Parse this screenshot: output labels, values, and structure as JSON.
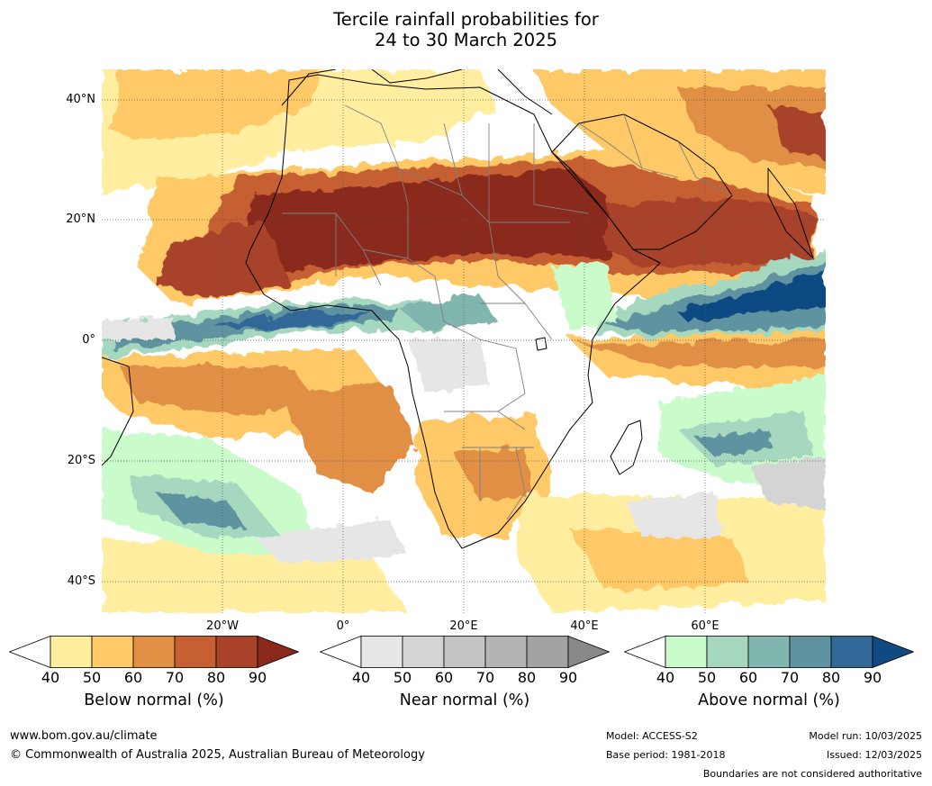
{
  "title_line1": "Tercile rainfall probabilities for",
  "title_line2": "24 to 30 March 2025",
  "map": {
    "lat_labels": [
      "40°N",
      "20°N",
      "0°",
      "20°S",
      "40°S"
    ],
    "lon_labels": [
      "20°W",
      "0°",
      "20°E",
      "40°E",
      "60°E"
    ],
    "grid": "dotted"
  },
  "colorbars": [
    {
      "title": "Below normal (%)",
      "ticks": [
        "40",
        "50",
        "60",
        "70",
        "80",
        "90"
      ],
      "colors": [
        "#ffffff",
        "#ffeea0",
        "#fec966",
        "#e08f45",
        "#c66033",
        "#a8432a",
        "#8a2a1c"
      ]
    },
    {
      "title": "Near normal (%)",
      "ticks": [
        "40",
        "50",
        "60",
        "70",
        "80",
        "90"
      ],
      "colors": [
        "#ffffff",
        "#e6e6e6",
        "#d4d4d4",
        "#c4c4c4",
        "#b4b4b4",
        "#a2a2a2",
        "#888888"
      ]
    },
    {
      "title": "Above normal (%)",
      "ticks": [
        "40",
        "50",
        "60",
        "70",
        "80",
        "90"
      ],
      "colors": [
        "#ffffff",
        "#c9fbcb",
        "#a5d8be",
        "#80b6ad",
        "#5f93a0",
        "#316898",
        "#114a82"
      ]
    }
  ],
  "footer": {
    "url": "www.bom.gov.au/climate",
    "copyright": "© Commonwealth of Australia 2025, Australian Bureau of Meteorology",
    "model": "Model: ACCESS-S2",
    "base_period": "Base period: 1981-2018",
    "model_run": "Model run: 10/03/2025",
    "issued": "Issued: 12/03/2025",
    "disclaimer": "Boundaries are not considered authoritative"
  }
}
